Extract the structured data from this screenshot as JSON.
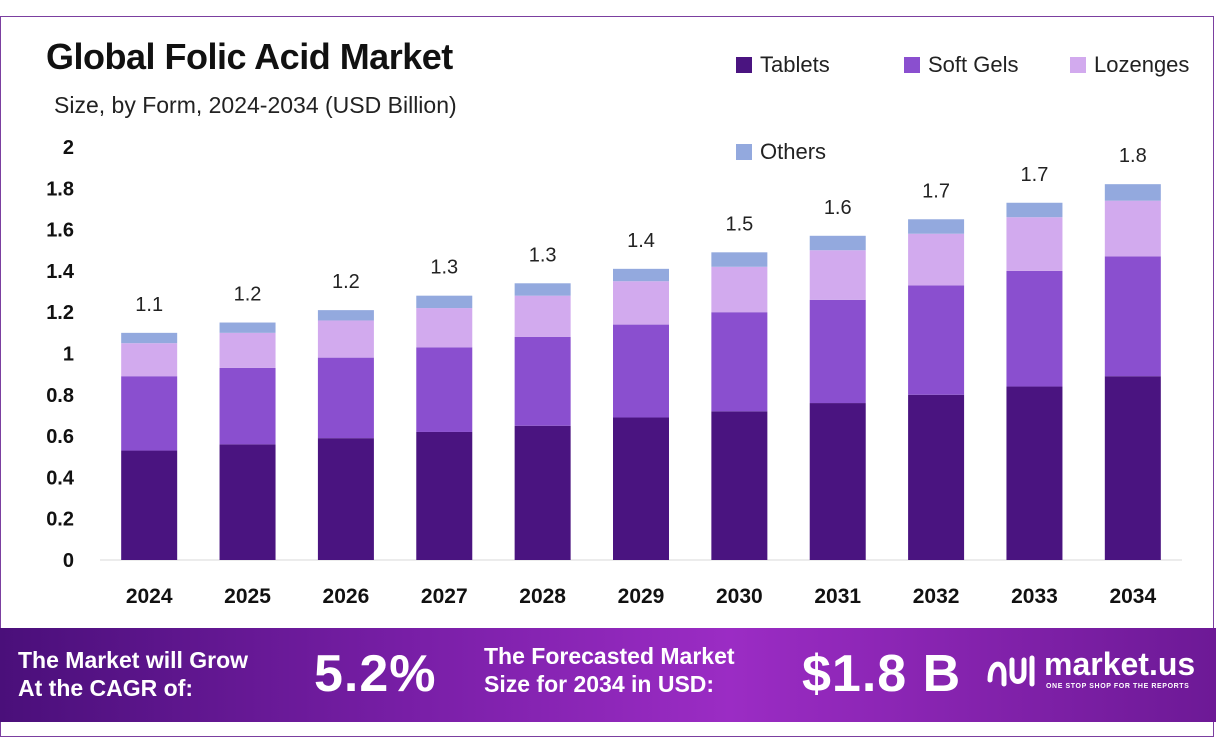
{
  "header": {
    "title": "Global Folic Acid Market",
    "subtitle": "Size, by Form, 2024-2034 (USD Billion)"
  },
  "chart_data": {
    "type": "bar",
    "stacked": true,
    "categories": [
      "2024",
      "2025",
      "2026",
      "2027",
      "2028",
      "2029",
      "2030",
      "2031",
      "2032",
      "2033",
      "2034"
    ],
    "series": [
      {
        "name": "Tablets",
        "color": "#4a1480",
        "values": [
          0.53,
          0.56,
          0.59,
          0.62,
          0.65,
          0.69,
          0.72,
          0.76,
          0.8,
          0.84,
          0.89
        ]
      },
      {
        "name": "Soft Gels",
        "color": "#8a4fcf",
        "values": [
          0.36,
          0.37,
          0.39,
          0.41,
          0.43,
          0.45,
          0.48,
          0.5,
          0.53,
          0.56,
          0.58
        ]
      },
      {
        "name": "Lozenges",
        "color": "#d2aaee",
        "values": [
          0.16,
          0.17,
          0.18,
          0.19,
          0.2,
          0.21,
          0.22,
          0.24,
          0.25,
          0.26,
          0.27
        ]
      },
      {
        "name": "Others",
        "color": "#93a9de",
        "values": [
          0.05,
          0.05,
          0.05,
          0.06,
          0.06,
          0.06,
          0.07,
          0.07,
          0.07,
          0.07,
          0.08
        ]
      }
    ],
    "totals_labels": [
      "1.1",
      "1.2",
      "1.2",
      "1.3",
      "1.3",
      "1.4",
      "1.5",
      "1.6",
      "1.7",
      "1.7",
      "1.8"
    ],
    "y_ticks": [
      "0",
      "0.2",
      "0.4",
      "0.6",
      "0.8",
      "1",
      "1.2",
      "1.4",
      "1.6",
      "1.8",
      "2"
    ],
    "ylim": [
      0,
      2
    ],
    "grid": false,
    "legend_position": "top-right"
  },
  "footer": {
    "cagr_line1": "The Market will Grow",
    "cagr_line2": "At the CAGR of:",
    "cagr_value": "5.2%",
    "forecast_line1": "The Forecasted Market",
    "forecast_line2": "Size for 2034 in USD:",
    "forecast_value": "$1.8 B",
    "brand_name": "market.us",
    "brand_tagline": "ONE STOP SHOP FOR THE REPORTS"
  }
}
